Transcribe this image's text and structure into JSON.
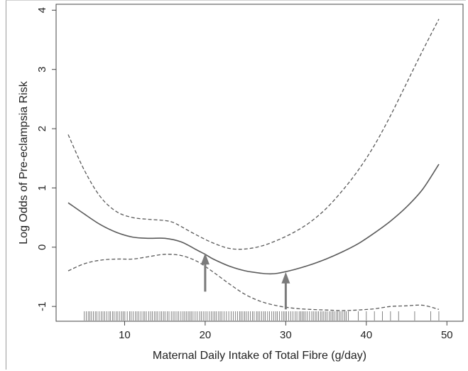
{
  "chart_data": {
    "type": "line",
    "title": "",
    "xlabel": "Maternal Daily Intake of Total Fibre (g/day)",
    "ylabel": "Log Odds of Pre-eclampsia Risk",
    "xlim": [
      1.5,
      52
    ],
    "ylim": [
      -1.25,
      4.1
    ],
    "x_ticks": [
      10,
      20,
      30,
      40,
      50
    ],
    "y_ticks": [
      -1,
      0,
      1,
      2,
      3,
      4
    ],
    "grid": false,
    "legend": "none",
    "series": [
      {
        "style": "solid",
        "x": [
          3,
          5,
          7,
          9,
          11,
          13,
          15,
          17,
          19,
          20,
          21,
          23,
          25,
          27,
          28,
          29,
          31,
          33,
          35,
          37,
          39,
          41,
          43,
          45,
          47,
          49
        ],
        "y": [
          0.75,
          0.56,
          0.38,
          0.25,
          0.17,
          0.15,
          0.15,
          0.09,
          -0.05,
          -0.12,
          -0.2,
          -0.32,
          -0.4,
          -0.44,
          -0.45,
          -0.44,
          -0.38,
          -0.3,
          -0.2,
          -0.08,
          0.06,
          0.24,
          0.44,
          0.68,
          0.98,
          1.4
        ]
      },
      {
        "style": "dashed",
        "x": [
          3,
          5,
          7,
          9,
          11,
          13,
          15,
          16,
          17,
          19,
          21,
          23,
          25,
          27,
          29,
          31,
          33,
          35,
          37,
          39,
          41,
          43,
          45,
          47,
          49
        ],
        "y": [
          1.9,
          1.3,
          0.85,
          0.6,
          0.5,
          0.47,
          0.45,
          0.42,
          0.35,
          0.2,
          0.07,
          -0.02,
          -0.03,
          0.02,
          0.12,
          0.25,
          0.42,
          0.65,
          0.95,
          1.3,
          1.72,
          2.22,
          2.77,
          3.32,
          3.85
        ]
      },
      {
        "style": "dashed",
        "x": [
          3,
          5,
          7,
          9,
          11,
          13,
          15,
          17,
          19,
          21,
          23,
          25,
          27,
          29,
          31,
          33,
          35,
          37,
          39,
          41,
          43,
          45,
          47,
          49
        ],
        "y": [
          -0.4,
          -0.28,
          -0.22,
          -0.2,
          -0.2,
          -0.16,
          -0.12,
          -0.14,
          -0.24,
          -0.42,
          -0.62,
          -0.8,
          -0.92,
          -0.99,
          -1.03,
          -1.05,
          -1.06,
          -1.07,
          -1.06,
          -1.04,
          -1.0,
          -0.99,
          -0.98,
          -1.05
        ]
      }
    ],
    "annotations": [
      {
        "type": "arrow",
        "x": 20,
        "y_from": -0.75,
        "y_to": -0.1
      },
      {
        "type": "arrow",
        "x": 30,
        "y_from": -1.05,
        "y_to": -0.42
      }
    ],
    "rug": {
      "dense_range": [
        5,
        38
      ],
      "sparse_x": [
        39,
        40,
        41,
        42,
        43,
        44,
        46,
        48,
        49
      ]
    },
    "colors": {
      "line": "#5a5a5a",
      "arrow": "#7a7a7a",
      "rug": "#666666"
    }
  }
}
